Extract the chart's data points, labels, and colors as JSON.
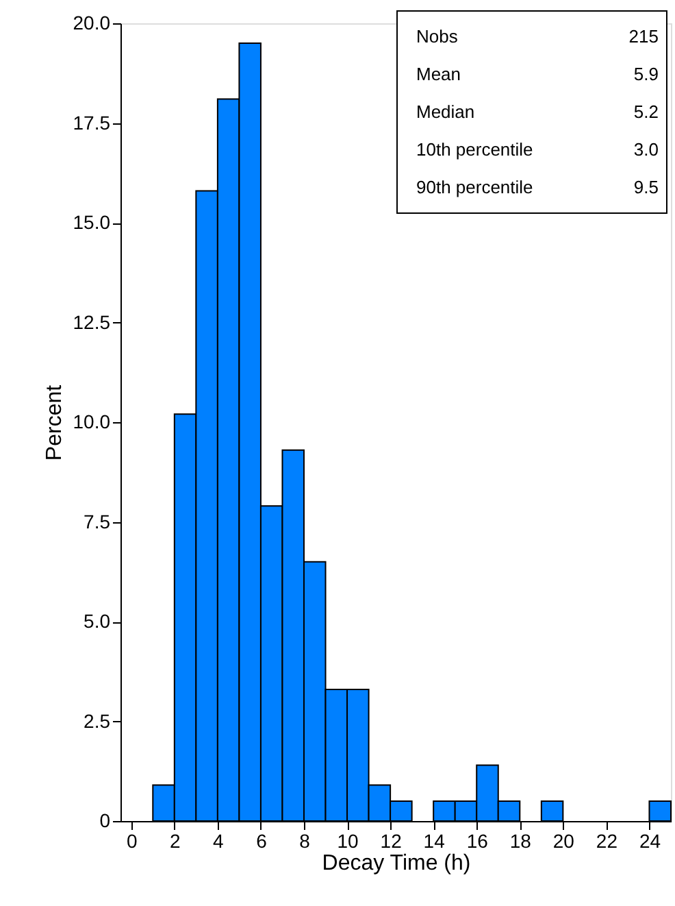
{
  "chart_data": {
    "type": "histogram",
    "xlabel": "Decay Time (h)",
    "ylabel": "Percent",
    "bins": [
      0,
      1,
      2,
      3,
      4,
      5,
      6,
      7,
      8,
      9,
      10,
      11,
      12,
      13,
      14,
      15,
      16,
      17,
      18,
      19,
      20,
      21,
      22,
      23,
      24,
      25
    ],
    "values": [
      0,
      0.9,
      10.2,
      15.8,
      18.1,
      19.5,
      7.9,
      9.3,
      6.5,
      3.3,
      3.3,
      0.9,
      0.5,
      0,
      0.5,
      0.5,
      1.4,
      0.5,
      0,
      0.5,
      0,
      0,
      0,
      0,
      0.5
    ],
    "color": "#0080ff",
    "xlim": [
      -0.5,
      25
    ],
    "xticks": [
      0,
      2,
      4,
      6,
      8,
      10,
      12,
      14,
      16,
      18,
      20,
      22,
      24
    ],
    "ylim": [
      0,
      20
    ],
    "yticks": [
      0,
      2.5,
      {
        "value": 5,
        "label": "5.0"
      },
      7.5,
      {
        "value": 10,
        "label": "10.0"
      },
      12.5,
      {
        "value": 15,
        "label": "15.0"
      },
      17.5,
      {
        "value": 20,
        "label": "20.0"
      }
    ],
    "grid": false,
    "annotations": [
      "Nobs 215",
      "Mean 5.9",
      "Median 5.2",
      "10th percentile 3.0",
      "90th percentile 9.5"
    ]
  }
}
